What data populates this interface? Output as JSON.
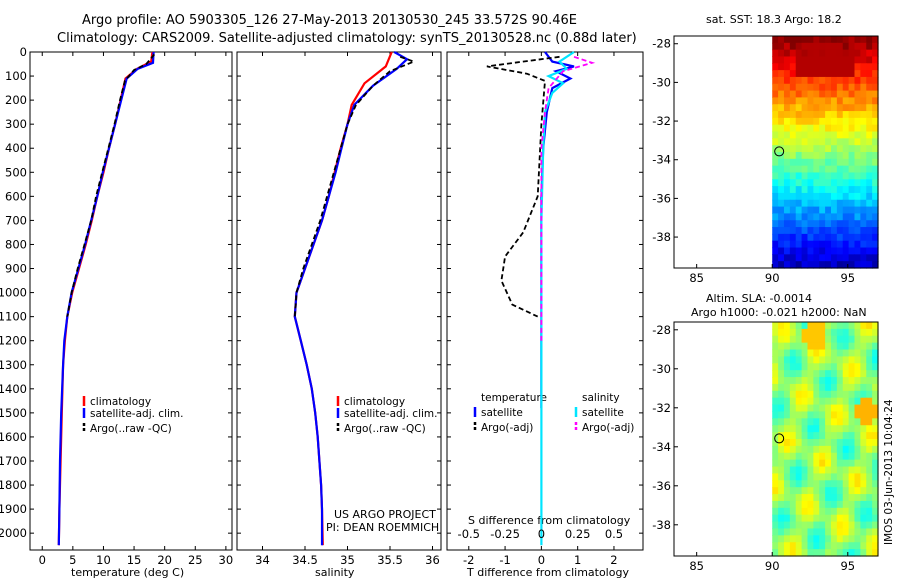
{
  "title_line1": "Argo profile: AO 5903305_126 27-May-2013 20130530_245 33.572S 90.46E",
  "title_line2": "Climatology: CARS2009. Satellite-adjusted climatology: synTS_20130528.nc (0.88d later)",
  "colors": {
    "climatology": "#ff0000",
    "satellite": "#0000ff",
    "argo": "#000000",
    "sal_sat": "#00e5ff",
    "sal_argo": "#ff00ff"
  },
  "chart_data": [
    {
      "type": "line",
      "panel": "temperature",
      "xlabel": "temperature (deg C)",
      "xlim": [
        -2,
        31
      ],
      "xticks": [
        0,
        5,
        10,
        15,
        20,
        25,
        30
      ],
      "ylim": [
        2070,
        0
      ],
      "yticks": [
        0,
        100,
        200,
        300,
        400,
        500,
        600,
        700,
        800,
        900,
        1000,
        1100,
        1200,
        1300,
        1400,
        1500,
        1600,
        1700,
        1800,
        1900,
        2000
      ],
      "legend": [
        "climatology",
        "satellite-adj. clim.",
        "Argo(..raw -QC)"
      ],
      "series": [
        {
          "name": "climatology",
          "color": "climatology",
          "dash": false,
          "points": [
            [
              18.0,
              0
            ],
            [
              17.8,
              40
            ],
            [
              15.5,
              70
            ],
            [
              13.6,
              110
            ],
            [
              12.8,
              200
            ],
            [
              11.9,
              300
            ],
            [
              10.9,
              400
            ],
            [
              10.0,
              500
            ],
            [
              9.0,
              600
            ],
            [
              8.1,
              700
            ],
            [
              7.1,
              800
            ],
            [
              6.0,
              900
            ],
            [
              4.9,
              1000
            ],
            [
              4.1,
              1100
            ],
            [
              3.7,
              1200
            ],
            [
              3.4,
              1300
            ],
            [
              3.2,
              1500
            ],
            [
              3.0,
              1700
            ],
            [
              2.8,
              1900
            ],
            [
              2.7,
              2050
            ]
          ]
        },
        {
          "name": "satellite-adj. clim.",
          "color": "satellite",
          "dash": false,
          "points": [
            [
              18.2,
              0
            ],
            [
              18.1,
              45
            ],
            [
              15.6,
              70
            ],
            [
              13.8,
              110
            ],
            [
              12.9,
              200
            ],
            [
              11.9,
              300
            ],
            [
              10.9,
              400
            ],
            [
              9.9,
              500
            ],
            [
              9.0,
              600
            ],
            [
              8.0,
              700
            ],
            [
              7.0,
              800
            ],
            [
              5.9,
              900
            ],
            [
              4.8,
              1000
            ],
            [
              4.1,
              1100
            ],
            [
              3.6,
              1200
            ],
            [
              3.4,
              1300
            ],
            [
              3.1,
              1500
            ],
            [
              2.9,
              1700
            ],
            [
              2.8,
              1900
            ],
            [
              2.7,
              2050
            ]
          ]
        },
        {
          "name": "Argo(..raw -QC)",
          "color": "argo",
          "dash": true,
          "points": [
            [
              18.3,
              10
            ],
            [
              17.0,
              50
            ],
            [
              15.0,
              75
            ],
            [
              13.5,
              120
            ],
            [
              12.7,
              200
            ],
            [
              11.8,
              300
            ],
            [
              10.8,
              400
            ],
            [
              9.8,
              500
            ],
            [
              8.8,
              600
            ],
            [
              8.0,
              700
            ],
            [
              6.9,
              800
            ],
            [
              5.8,
              900
            ],
            [
              4.8,
              1000
            ],
            [
              4.1,
              1100
            ]
          ]
        }
      ]
    },
    {
      "type": "line",
      "panel": "salinity",
      "xlabel": "salinity",
      "xlim": [
        33.7,
        36.1
      ],
      "xticks": [
        34,
        34.5,
        35,
        35.5,
        36
      ],
      "ylim": [
        2070,
        0
      ],
      "legend": [
        "climatology",
        "satellite-adj. clim.",
        "Argo(..raw -QC)"
      ],
      "series": [
        {
          "name": "climatology",
          "color": "climatology",
          "dash": false,
          "points": [
            [
              35.52,
              0
            ],
            [
              35.45,
              60
            ],
            [
              35.2,
              130
            ],
            [
              35.05,
              220
            ],
            [
              35.0,
              300
            ],
            [
              34.92,
              400
            ],
            [
              34.85,
              500
            ],
            [
              34.78,
              600
            ],
            [
              34.7,
              700
            ],
            [
              34.6,
              800
            ],
            [
              34.5,
              900
            ],
            [
              34.4,
              1000
            ],
            [
              34.38,
              1100
            ],
            [
              34.45,
              1200
            ],
            [
              34.52,
              1300
            ],
            [
              34.58,
              1400
            ],
            [
              34.62,
              1500
            ],
            [
              34.65,
              1600
            ],
            [
              34.67,
              1700
            ],
            [
              34.69,
              1800
            ],
            [
              34.7,
              1900
            ],
            [
              34.71,
              2050
            ]
          ]
        },
        {
          "name": "satellite-adj. clim.",
          "color": "satellite",
          "dash": false,
          "points": [
            [
              35.55,
              0
            ],
            [
              35.7,
              30
            ],
            [
              35.58,
              70
            ],
            [
              35.3,
              140
            ],
            [
              35.08,
              220
            ],
            [
              35.0,
              300
            ],
            [
              34.93,
              400
            ],
            [
              34.86,
              500
            ],
            [
              34.78,
              600
            ],
            [
              34.7,
              700
            ],
            [
              34.6,
              800
            ],
            [
              34.5,
              900
            ],
            [
              34.4,
              1000
            ],
            [
              34.38,
              1100
            ],
            [
              34.45,
              1200
            ],
            [
              34.52,
              1300
            ],
            [
              34.58,
              1400
            ],
            [
              34.62,
              1500
            ],
            [
              34.65,
              1600
            ],
            [
              34.67,
              1700
            ],
            [
              34.69,
              1800
            ],
            [
              34.7,
              1900
            ],
            [
              34.7,
              2050
            ]
          ]
        },
        {
          "name": "Argo(..raw -QC)",
          "color": "argo",
          "dash": true,
          "points": [
            [
              35.62,
              20
            ],
            [
              35.78,
              40
            ],
            [
              35.5,
              80
            ],
            [
              35.3,
              140
            ],
            [
              35.1,
              220
            ],
            [
              35.0,
              300
            ],
            [
              34.92,
              400
            ],
            [
              34.84,
              500
            ],
            [
              34.76,
              600
            ],
            [
              34.68,
              700
            ],
            [
              34.58,
              800
            ],
            [
              34.48,
              900
            ],
            [
              34.4,
              1000
            ],
            [
              34.38,
              1100
            ]
          ]
        }
      ]
    },
    {
      "type": "line",
      "panel": "differences",
      "xlabel": "T difference from climatology",
      "xlabel_top": "S difference from climatology",
      "xlim": [
        -2.6,
        2.8
      ],
      "xticks": [
        -2,
        -1,
        0,
        1,
        2
      ],
      "sal_ticks_labels": [
        "-0.5",
        "-0.25",
        "0",
        "0.25",
        "0.5"
      ],
      "sal_ticks_at_T": [
        -2,
        -1,
        0,
        1,
        2
      ],
      "ylim": [
        2070,
        0
      ],
      "legend_temperature_header": "temperature",
      "legend_salinity_header": "salinity",
      "legend_entries": [
        "satellite",
        "Argo(-adj)",
        "satellite",
        "Argo(-adj)"
      ],
      "series": [
        {
          "name": "T satellite",
          "color": "satellite",
          "dash": false,
          "points": [
            [
              0.1,
              0
            ],
            [
              0.3,
              40
            ],
            [
              0.9,
              60
            ],
            [
              0.4,
              80
            ],
            [
              0.8,
              110
            ],
            [
              0.3,
              150
            ],
            [
              0.15,
              250
            ],
            [
              0.05,
              400
            ],
            [
              0.0,
              600
            ],
            [
              0.0,
              1000
            ],
            [
              0.0,
              1400
            ],
            [
              0.0,
              1480
            ]
          ]
        },
        {
          "name": "T Argo(-adj)",
          "color": "argo",
          "dash": true,
          "points": [
            [
              0.5,
              20
            ],
            [
              -1.5,
              60
            ],
            [
              -0.4,
              90
            ],
            [
              0.1,
              120
            ],
            [
              0.0,
              300
            ],
            [
              -0.1,
              600
            ],
            [
              -0.5,
              750
            ],
            [
              -1.0,
              850
            ],
            [
              -1.1,
              950
            ],
            [
              -0.8,
              1050
            ],
            [
              -0.1,
              1100
            ]
          ]
        },
        {
          "name": "S satellite",
          "color": "sal_sat",
          "dash": false,
          "points": [
            [
              0.9,
              0
            ],
            [
              0.5,
              40
            ],
            [
              0.7,
              70
            ],
            [
              0.2,
              100
            ],
            [
              0.6,
              130
            ],
            [
              0.3,
              170
            ],
            [
              0.1,
              250
            ],
            [
              0.05,
              400
            ],
            [
              0.0,
              700
            ],
            [
              0.0,
              1200
            ],
            [
              0.0,
              2050
            ]
          ]
        },
        {
          "name": "S Argo(-adj)",
          "color": "sal_argo",
          "dash": true,
          "points": [
            [
              0.9,
              20
            ],
            [
              1.4,
              45
            ],
            [
              0.6,
              80
            ],
            [
              0.2,
              150
            ],
            [
              0.1,
              250
            ],
            [
              0.0,
              400
            ],
            [
              0.0,
              700
            ],
            [
              0.0,
              1000
            ],
            [
              0.0,
              1200
            ]
          ]
        }
      ]
    },
    {
      "type": "heatmap",
      "panel": "sst_map",
      "title": "sat. SST: 18.3  Argo: 18.2",
      "xticks": [
        85,
        90,
        95
      ],
      "yticks": [
        -28,
        -30,
        -32,
        -34,
        -36,
        -38
      ],
      "xlim": [
        83.5,
        97
      ],
      "ylim": [
        -39.6,
        -27.6
      ],
      "data_xlim": [
        90,
        97
      ],
      "marker": {
        "lon": 90.46,
        "lat": -33.57
      }
    },
    {
      "type": "heatmap",
      "panel": "sla_map",
      "title1": "Altim. SLA: -0.0014",
      "title2": "Argo h1000: -0.021 h2000: NaN",
      "xticks": [
        85,
        90,
        95
      ],
      "yticks": [
        -28,
        -30,
        -32,
        -34,
        -36,
        -38
      ],
      "xlim": [
        83.5,
        97
      ],
      "ylim": [
        -39.6,
        -27.6
      ],
      "data_xlim": [
        90,
        97
      ],
      "marker": {
        "lon": 90.46,
        "lat": -33.57
      }
    }
  ],
  "credit1": "US ARGO PROJECT",
  "credit2": "PI: DEAN ROEMMICH",
  "stamp": "IMOS 03-Jun-2013 10:04:24"
}
